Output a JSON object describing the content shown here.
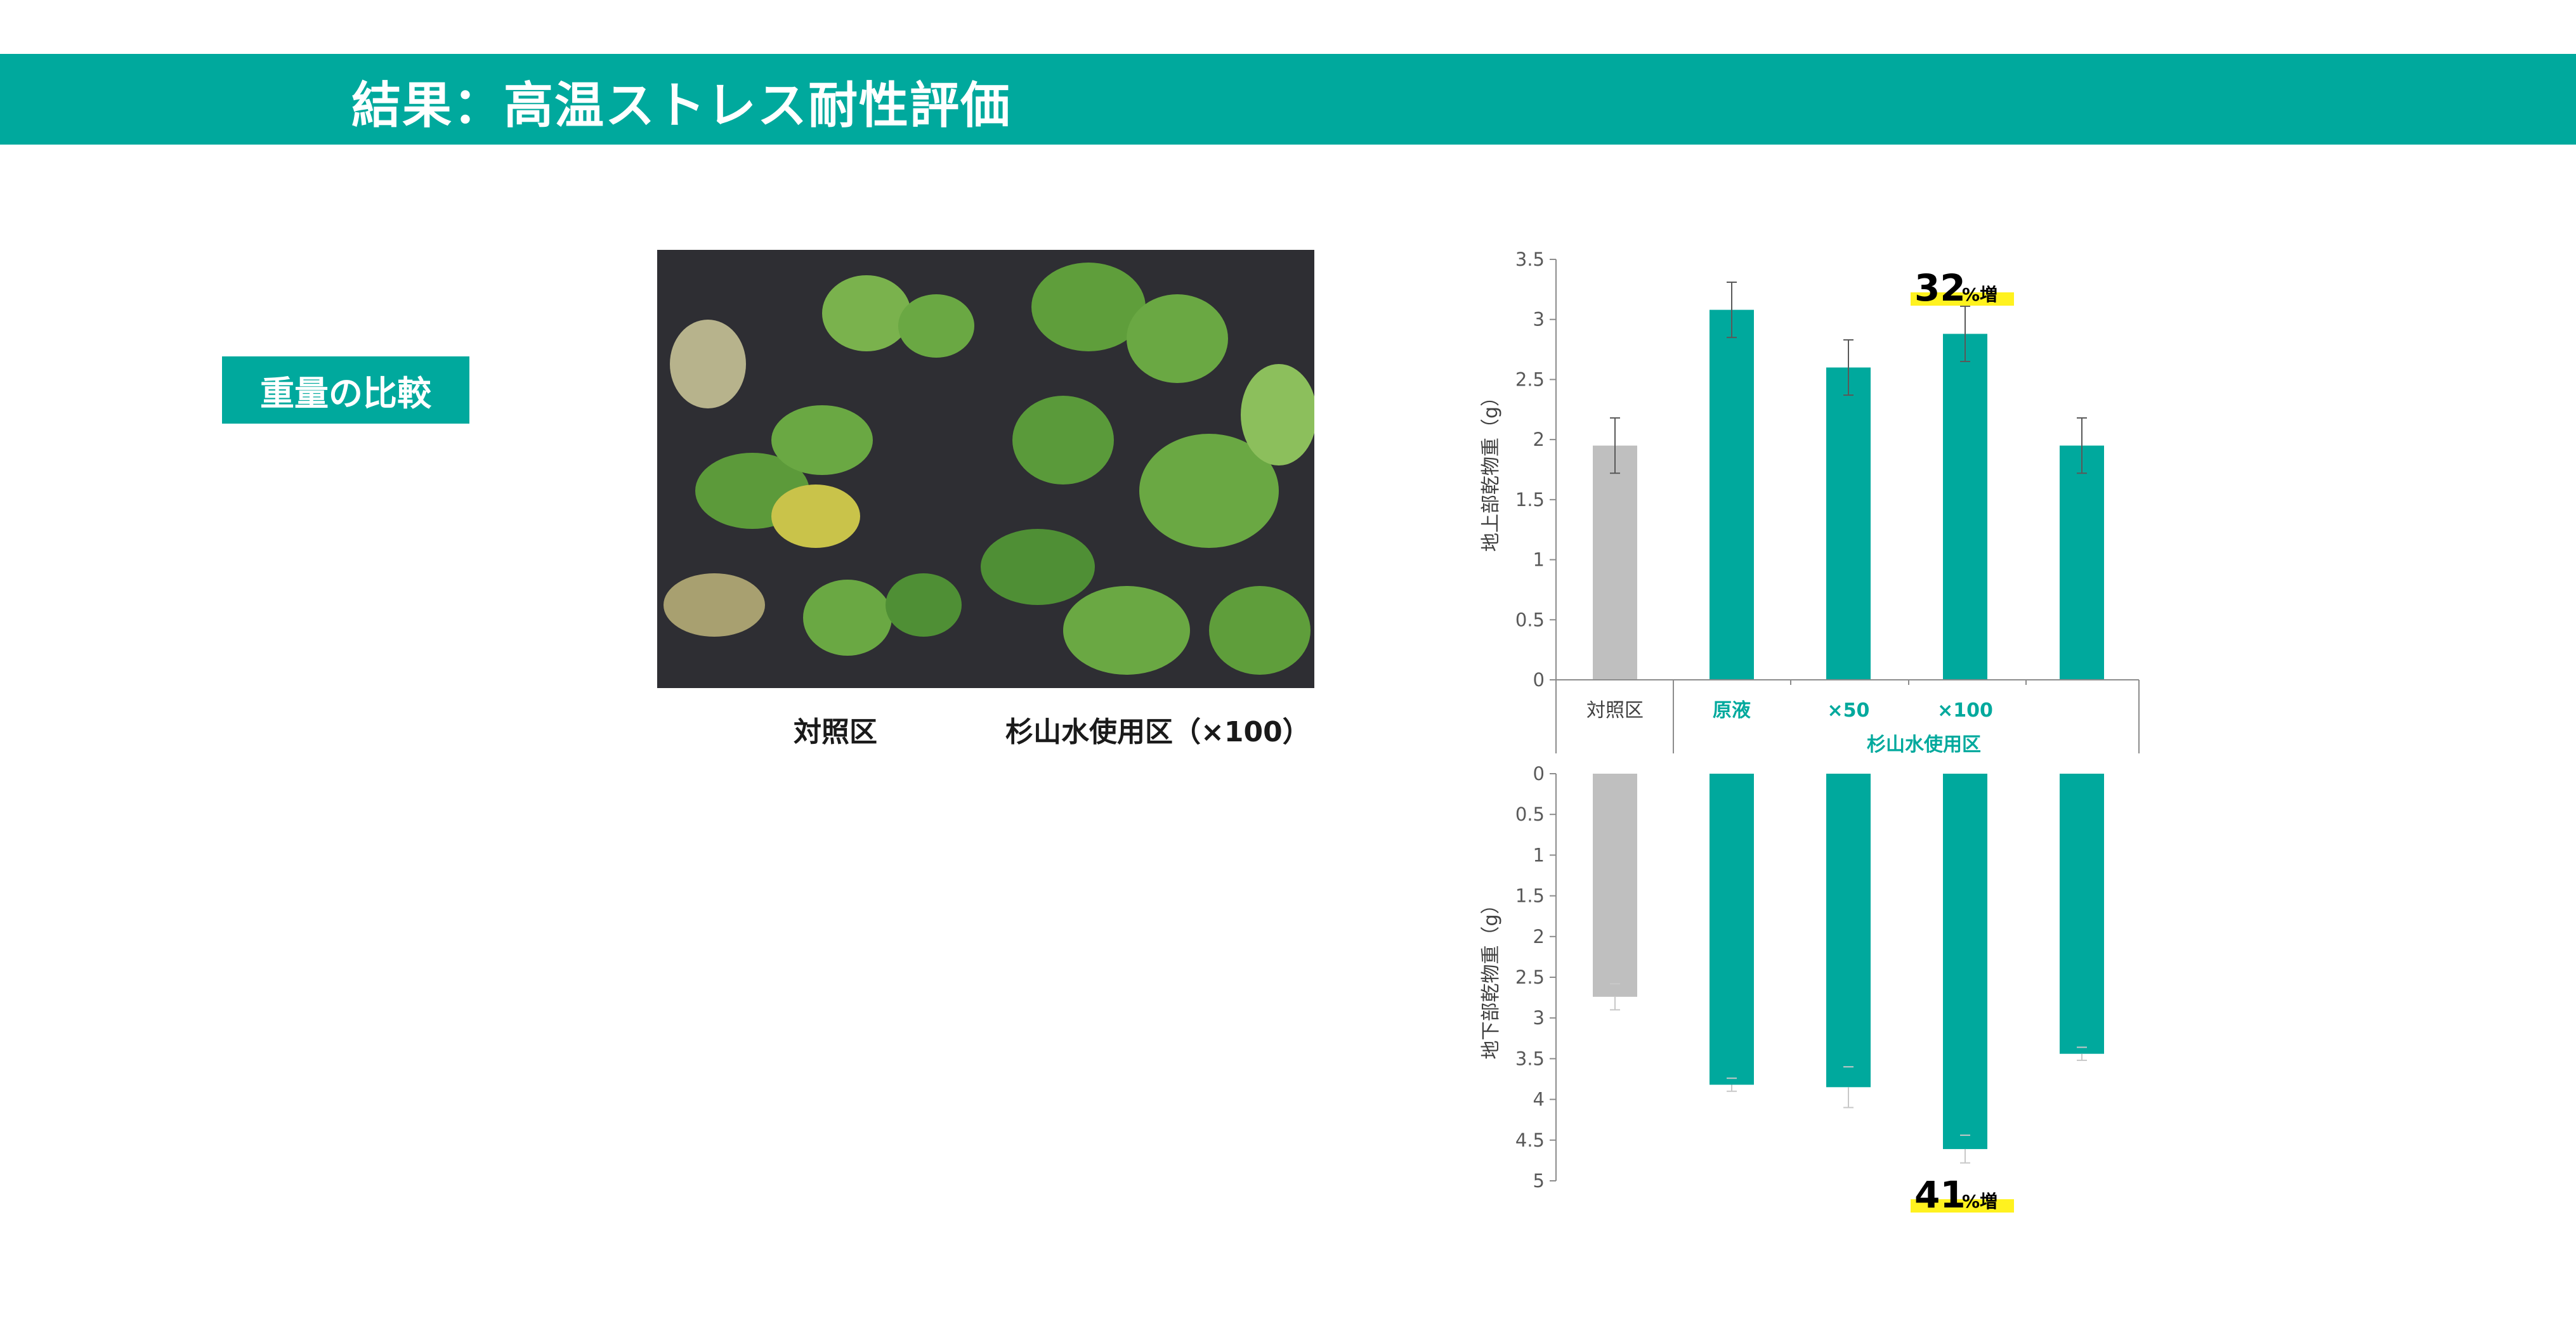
{
  "header": {
    "title": "結果：高温ストレス耐性評価"
  },
  "section": {
    "badge": "重量の比較"
  },
  "photo": {
    "caption_left": "対照区",
    "caption_right": "杉山水使用区（×100）"
  },
  "colors": {
    "accent": "#00a99d",
    "control": "#bfbfbf",
    "highlight": "#fff21f"
  },
  "chart_data": [
    {
      "type": "bar",
      "ylabel": "地上部乾物重（g）",
      "ylim": [
        0,
        3.5
      ],
      "yticks": [
        "0",
        "0.5",
        "1",
        "1.5",
        "2",
        "2.5",
        "3",
        "3.5"
      ],
      "categories": [
        "対照区",
        "原液",
        "×50",
        "×100",
        ""
      ],
      "group_label": "杉山水使用区",
      "values": [
        1.95,
        3.08,
        2.6,
        2.88,
        1.95
      ],
      "errors": [
        0.23,
        0.23,
        0.23,
        0.23,
        0.23
      ],
      "annotation": {
        "number": "32",
        "suffix": "%増",
        "category": "×100"
      }
    },
    {
      "type": "bar",
      "ylabel": "地下部乾物重（g）",
      "ylim": [
        0,
        5
      ],
      "y_inverted": true,
      "yticks": [
        "0",
        "0.5",
        "1",
        "1.5",
        "2",
        "2.5",
        "3",
        "3.5",
        "4",
        "4.5",
        "5"
      ],
      "categories": [
        "対照区",
        "原液",
        "×50",
        "×100",
        ""
      ],
      "values": [
        2.74,
        3.82,
        3.85,
        4.61,
        3.44
      ],
      "errors": [
        0.16,
        0.08,
        0.25,
        0.17,
        0.08
      ],
      "annotation": {
        "number": "41",
        "suffix": "%増",
        "category": "×100"
      }
    }
  ]
}
